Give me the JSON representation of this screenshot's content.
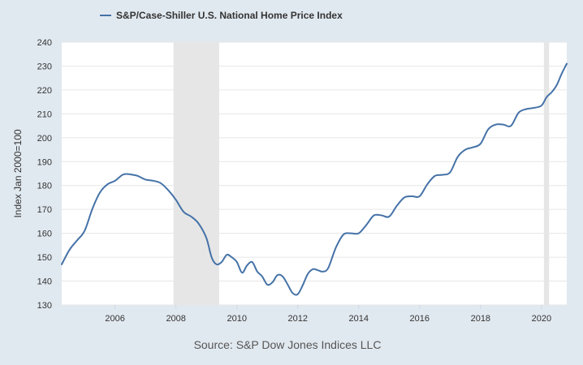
{
  "chart_data": {
    "type": "line",
    "title": "",
    "xlabel": "",
    "ylabel": "Index Jan 2000=100",
    "xlim": [
      2004.25,
      2020.83
    ],
    "ylim": [
      130,
      240
    ],
    "y_ticks": [
      130,
      140,
      150,
      160,
      170,
      180,
      190,
      200,
      210,
      220,
      230,
      240
    ],
    "x_ticks": [
      2006,
      2008,
      2010,
      2012,
      2014,
      2016,
      2018,
      2020
    ],
    "x_tick_labels": [
      "2006",
      "2008",
      "2010",
      "2012",
      "2014",
      "2016",
      "2018",
      "2020"
    ],
    "grid": "horizontal",
    "legend_position": "top-left",
    "source": "Source: S&P Dow Jones Indices LLC",
    "colors": {
      "line": "#4572a7",
      "recession": "#e6e6e6",
      "plot_bg": "#ffffff",
      "page_bg": "#e1e9f0"
    },
    "recessions": [
      {
        "start": 2007.92,
        "end": 2009.42
      },
      {
        "start": 2020.08,
        "end": 2020.25
      }
    ],
    "series": [
      {
        "name": "S&P/Case-Shiller U.S. National Home Price Index",
        "x": [
          2004.25,
          2004.5,
          2004.75,
          2005.0,
          2005.25,
          2005.5,
          2005.75,
          2006.0,
          2006.25,
          2006.42,
          2006.58,
          2006.75,
          2007.0,
          2007.25,
          2007.5,
          2007.75,
          2008.0,
          2008.25,
          2008.5,
          2008.75,
          2009.0,
          2009.17,
          2009.33,
          2009.5,
          2009.67,
          2009.83,
          2010.0,
          2010.17,
          2010.33,
          2010.5,
          2010.67,
          2010.83,
          2011.0,
          2011.17,
          2011.33,
          2011.5,
          2011.67,
          2011.83,
          2012.0,
          2012.17,
          2012.33,
          2012.5,
          2012.67,
          2012.83,
          2013.0,
          2013.25,
          2013.5,
          2013.75,
          2014.0,
          2014.25,
          2014.5,
          2014.75,
          2015.0,
          2015.25,
          2015.5,
          2015.75,
          2016.0,
          2016.25,
          2016.5,
          2016.75,
          2017.0,
          2017.25,
          2017.5,
          2017.75,
          2018.0,
          2018.25,
          2018.5,
          2018.75,
          2019.0,
          2019.25,
          2019.5,
          2019.75,
          2020.0,
          2020.17,
          2020.33,
          2020.5,
          2020.67,
          2020.83
        ],
        "y": [
          147.0,
          153.0,
          157.0,
          161.0,
          170.0,
          177.0,
          180.5,
          182.0,
          184.5,
          184.8,
          184.5,
          184.0,
          182.5,
          182.0,
          181.0,
          178.0,
          174.0,
          169.0,
          167.0,
          164.0,
          158.0,
          150.0,
          147.0,
          148.0,
          151.0,
          150.0,
          148.0,
          143.5,
          146.5,
          148.0,
          144.0,
          142.0,
          138.5,
          139.5,
          142.5,
          142.0,
          138.5,
          135.0,
          134.5,
          138.5,
          143.0,
          145.0,
          144.5,
          144.0,
          145.5,
          154.0,
          159.5,
          160.0,
          160.0,
          163.5,
          167.5,
          167.5,
          167.0,
          171.5,
          175.0,
          175.5,
          175.5,
          180.5,
          184.0,
          184.5,
          185.5,
          192.0,
          195.0,
          196.0,
          197.5,
          203.5,
          205.5,
          205.5,
          205.0,
          210.5,
          212.0,
          212.5,
          213.5,
          217.0,
          219.0,
          222.0,
          227.0,
          231.0
        ]
      }
    ]
  }
}
